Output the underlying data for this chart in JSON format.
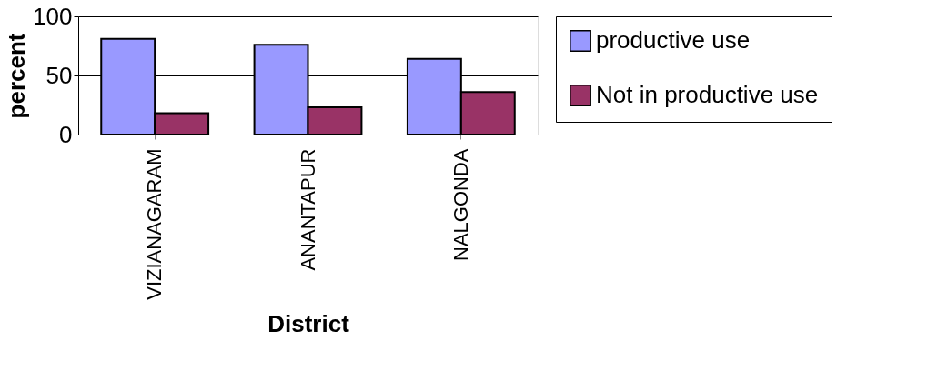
{
  "chart_data": {
    "type": "bar",
    "xlabel": "District",
    "ylabel": "percent",
    "categories": [
      "VIZIANAGARAM",
      "ANANTAPUR",
      "NALGONDA"
    ],
    "series": [
      {
        "name": "productive use",
        "color": "#9999ff",
        "values": [
          81,
          76,
          64
        ]
      },
      {
        "name": "Not in productive use",
        "color": "#993366",
        "values": [
          18,
          23,
          36
        ]
      }
    ],
    "ylim": [
      0,
      100
    ],
    "yticks": [
      0,
      50,
      100
    ],
    "grid": "y",
    "legend": "right"
  }
}
